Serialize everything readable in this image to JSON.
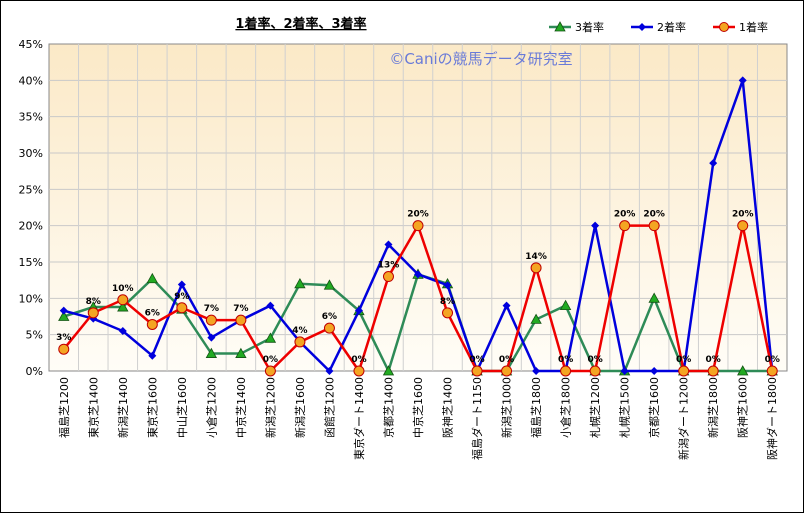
{
  "chart_data": {
    "type": "line",
    "title": "1着率、2着率、3着率",
    "watermark": "©Caniの競馬データ研究室",
    "ylim": [
      0,
      45
    ],
    "yticks": [
      "0%",
      "5%",
      "10%",
      "15%",
      "20%",
      "25%",
      "30%",
      "35%",
      "40%",
      "45%"
    ],
    "grid": true,
    "legend_position": "top-right",
    "categories": [
      "福島芝1200",
      "東京芝1400",
      "新潟芝1400",
      "東京芝1600",
      "中山芝1600",
      "小倉芝1200",
      "中京芝1400",
      "新潟芝1200",
      "新潟芝1600",
      "函館芝1200",
      "東京ダート1400",
      "京都芝1400",
      "中京芝1600",
      "阪神芝1400",
      "福島ダート1150",
      "新潟芝1000",
      "福島芝1800",
      "小倉芝1800",
      "札幌芝1200",
      "札幌芝1500",
      "京都芝1600",
      "新潟ダート1200",
      "新潟芝1800",
      "阪神芝1600",
      "阪神ダート1800"
    ],
    "series": [
      {
        "name": "3着率",
        "color": "#2e8b57",
        "marker": "triangle",
        "marker_fill": "#22aa22",
        "values": [
          7.5,
          8.8,
          8.8,
          12.7,
          8.5,
          2.4,
          2.4,
          4.5,
          12.0,
          11.8,
          8.3,
          0,
          13.3,
          12.0,
          0,
          0,
          7.1,
          9.0,
          0,
          0,
          10.0,
          0,
          0,
          0,
          0
        ]
      },
      {
        "name": "2着率",
        "color": "#0000dd",
        "marker": "diamond",
        "marker_fill": "#0000dd",
        "values": [
          8.3,
          7.2,
          5.5,
          2.1,
          11.9,
          4.6,
          7.0,
          9.0,
          4.0,
          0,
          8.3,
          17.4,
          13.3,
          11.8,
          0,
          9.0,
          0,
          0,
          20.0,
          0,
          0,
          0,
          28.6,
          40.0,
          0
        ]
      },
      {
        "name": "1着率",
        "color": "#ee0000",
        "marker": "circle",
        "marker_fill": "#f4a522",
        "values": [
          3.0,
          8.0,
          9.8,
          6.4,
          8.7,
          7.0,
          7.0,
          0,
          4.0,
          5.9,
          0,
          13.0,
          20.0,
          8.0,
          0,
          0,
          14.2,
          0,
          0,
          20.0,
          20.0,
          0,
          0,
          20.0,
          0
        ]
      }
    ],
    "data_labels": [
      "3%",
      "8%",
      "10%",
      "6%",
      "9%",
      "7%",
      "7%",
      "0%",
      "4%",
      "6%",
      "0%",
      "13%",
      "20%",
      "8%",
      "0%",
      "0%",
      "14%",
      "0%",
      "0%",
      "20%",
      "20%",
      "0%",
      "0%",
      "20%",
      "0%"
    ]
  }
}
